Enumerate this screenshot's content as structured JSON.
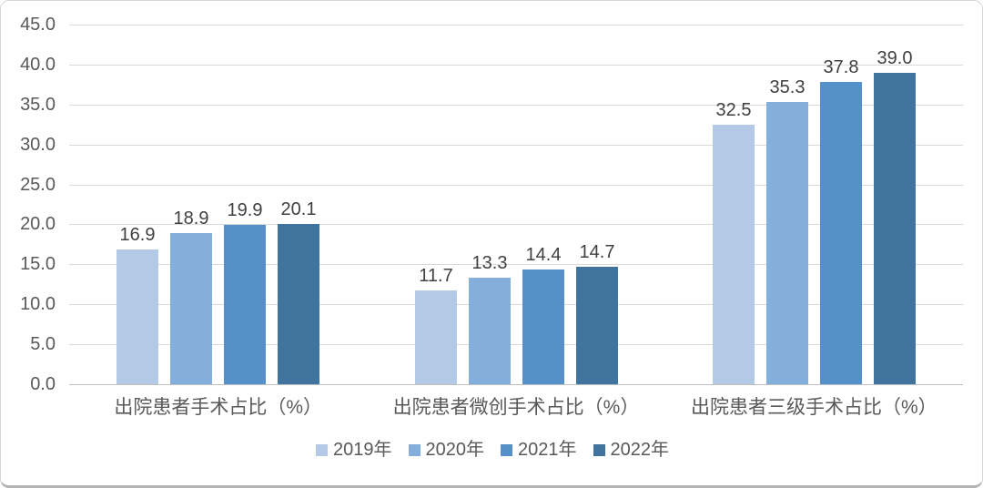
{
  "chart_data": {
    "type": "bar",
    "categories": [
      "出院患者手术占比（%）",
      "出院患者微创手术占比（%）",
      "出院患者三级手术占比（%）"
    ],
    "series": [
      {
        "name": "2019年",
        "color": "#b3c9e6",
        "values": [
          16.9,
          11.7,
          32.5
        ]
      },
      {
        "name": "2020年",
        "color": "#84aedc",
        "values": [
          18.9,
          13.3,
          35.3
        ]
      },
      {
        "name": "2021年",
        "color": "#5591c8",
        "values": [
          19.9,
          14.4,
          37.8
        ]
      },
      {
        "name": "2022年",
        "color": "#40739e",
        "values": [
          20.1,
          14.7,
          39.0
        ]
      }
    ],
    "title": "",
    "xlabel": "",
    "ylabel": "",
    "ylim": [
      0,
      45
    ],
    "ytick_step": 5,
    "ytick_labels": [
      "0.0",
      "5.0",
      "10.0",
      "15.0",
      "20.0",
      "25.0",
      "30.0",
      "35.0",
      "40.0",
      "45.0"
    ],
    "grid": true,
    "legend_position": "bottom",
    "value_labels": true
  },
  "style": {
    "gridline_color": "#d9d9d9",
    "axis_line_color": "#bfbfbf",
    "tick_label_color": "#595959",
    "category_label_color": "#595959",
    "value_label_color": "#404040",
    "legend_label_color": "#595959",
    "background_color": "#ffffff"
  }
}
